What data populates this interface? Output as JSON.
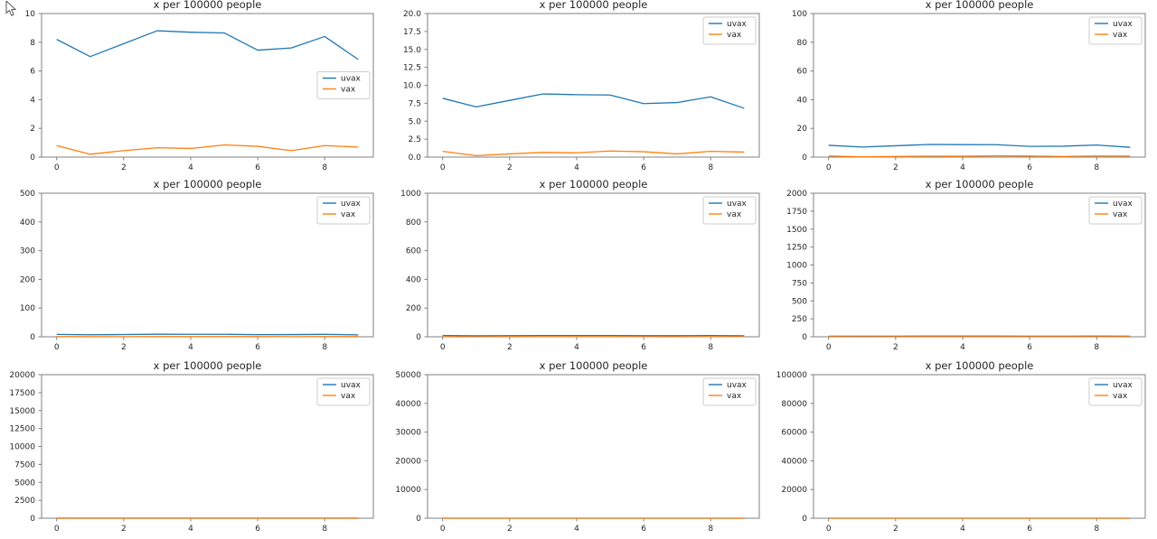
{
  "figure": {
    "background": "#ffffff",
    "cursor": "arrow-pointer"
  },
  "chart_data": {
    "type": "line",
    "title": "x per 100000 people",
    "xlabel": "",
    "ylabel": "",
    "grid": false,
    "x": [
      0,
      1,
      2,
      3,
      4,
      5,
      6,
      7,
      8,
      9
    ],
    "xticks": [
      0,
      2,
      4,
      6,
      8
    ],
    "series": [
      {
        "name": "uvax",
        "color": "#1f77b4",
        "values": [
          8.2,
          7.0,
          7.9,
          8.8,
          8.7,
          8.65,
          7.45,
          7.6,
          8.4,
          6.8
        ]
      },
      {
        "name": "vax",
        "color": "#ff7f0e",
        "values": [
          0.8,
          0.2,
          0.45,
          0.65,
          0.6,
          0.85,
          0.75,
          0.45,
          0.8,
          0.7
        ]
      }
    ],
    "legend": {
      "entries": [
        "uvax",
        "vax"
      ],
      "background": "#ffffff",
      "border_color": "#cccccc"
    },
    "subplots": [
      {
        "row": 0,
        "col": 0,
        "ylim": [
          0,
          10
        ],
        "yticks": [
          "0",
          "2",
          "4",
          "6",
          "8",
          "10"
        ],
        "legend_loc": "center right"
      },
      {
        "row": 0,
        "col": 1,
        "ylim": [
          0,
          20
        ],
        "yticks": [
          "0.0",
          "2.5",
          "5.0",
          "7.5",
          "10.0",
          "12.5",
          "15.0",
          "17.5",
          "20.0"
        ],
        "legend_loc": "upper right"
      },
      {
        "row": 0,
        "col": 2,
        "ylim": [
          0,
          100
        ],
        "yticks": [
          "0",
          "20",
          "40",
          "60",
          "80",
          "100"
        ],
        "legend_loc": "upper right"
      },
      {
        "row": 1,
        "col": 0,
        "ylim": [
          0,
          500
        ],
        "yticks": [
          "0",
          "100",
          "200",
          "300",
          "400",
          "500"
        ],
        "legend_loc": "upper right"
      },
      {
        "row": 1,
        "col": 1,
        "ylim": [
          0,
          1000
        ],
        "yticks": [
          "0",
          "200",
          "400",
          "600",
          "800",
          "1000"
        ],
        "legend_loc": "upper right"
      },
      {
        "row": 1,
        "col": 2,
        "ylim": [
          0,
          2000
        ],
        "yticks": [
          "0",
          "250",
          "500",
          "750",
          "1000",
          "1250",
          "1500",
          "1750",
          "2000"
        ],
        "legend_loc": "upper right"
      },
      {
        "row": 2,
        "col": 0,
        "ylim": [
          0,
          20000
        ],
        "yticks": [
          "0",
          "2500",
          "5000",
          "7500",
          "10000",
          "12500",
          "15000",
          "17500",
          "20000"
        ],
        "legend_loc": "upper right"
      },
      {
        "row": 2,
        "col": 1,
        "ylim": [
          0,
          50000
        ],
        "yticks": [
          "0",
          "10000",
          "20000",
          "30000",
          "40000",
          "50000"
        ],
        "legend_loc": "upper right"
      },
      {
        "row": 2,
        "col": 2,
        "ylim": [
          0,
          100000
        ],
        "yticks": [
          "0",
          "20000",
          "40000",
          "60000",
          "80000",
          "100000"
        ],
        "legend_loc": "upper right"
      }
    ],
    "axis_color": "#808080",
    "text_color": "#262626"
  }
}
